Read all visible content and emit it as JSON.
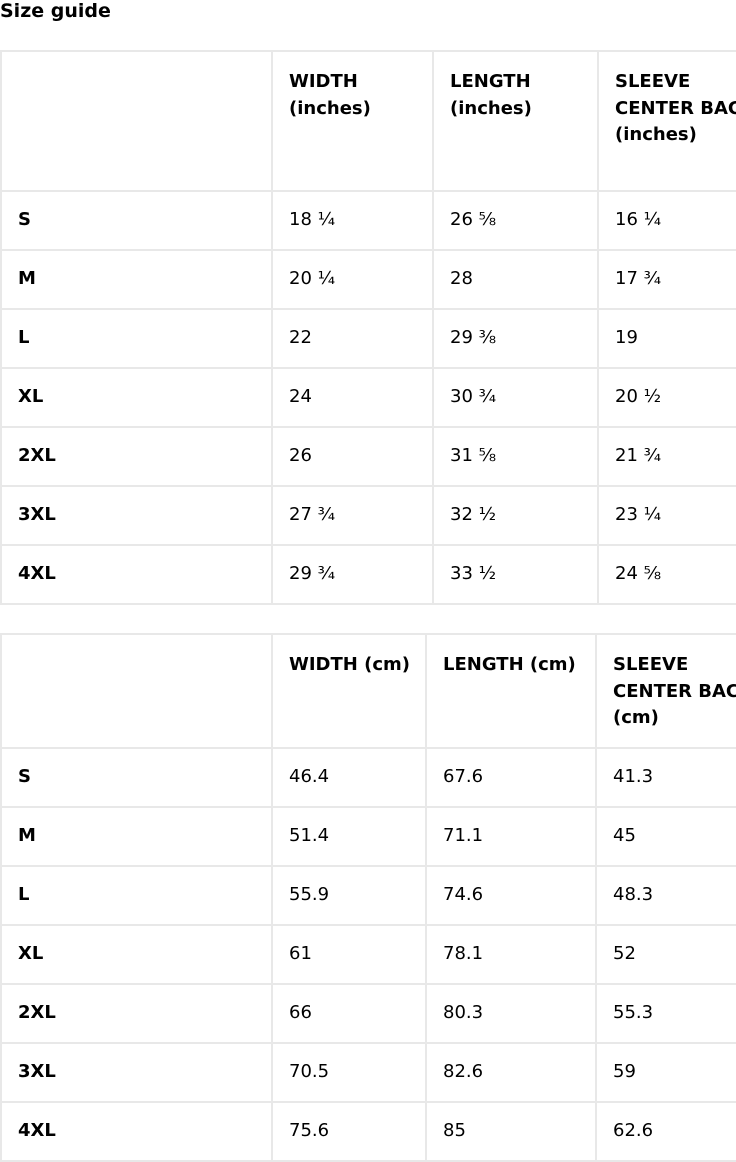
{
  "title": "Size guide",
  "tables": [
    {
      "headers": [
        "",
        "WIDTH (inches)",
        "LENGTH (inches)",
        "SLEEVE CENTER BACK (inches)"
      ],
      "rows": [
        [
          "S",
          "18 ¼",
          "26 ⅝",
          "16 ¼"
        ],
        [
          "M",
          "20 ¼",
          "28",
          "17 ¾"
        ],
        [
          "L",
          "22",
          "29 ⅜",
          "19"
        ],
        [
          "XL",
          "24",
          "30 ¾",
          "20 ½"
        ],
        [
          "2XL",
          "26",
          "31 ⅝",
          "21 ¾"
        ],
        [
          "3XL",
          "27 ¾",
          "32 ½",
          "23 ¼"
        ],
        [
          "4XL",
          "29 ¾",
          "33 ½",
          "24 ⅝"
        ]
      ]
    },
    {
      "headers": [
        "",
        "WIDTH (cm)",
        "LENGTH (cm)",
        "SLEEVE CENTER BACK (cm)"
      ],
      "rows": [
        [
          "S",
          "46.4",
          "67.6",
          "41.3"
        ],
        [
          "M",
          "51.4",
          "71.1",
          "45"
        ],
        [
          "L",
          "55.9",
          "74.6",
          "48.3"
        ],
        [
          "XL",
          "61",
          "78.1",
          "52"
        ],
        [
          "2XL",
          "66",
          "80.3",
          "55.3"
        ],
        [
          "3XL",
          "70.5",
          "82.6",
          "59"
        ],
        [
          "4XL",
          "75.6",
          "85",
          "62.6"
        ]
      ]
    }
  ]
}
